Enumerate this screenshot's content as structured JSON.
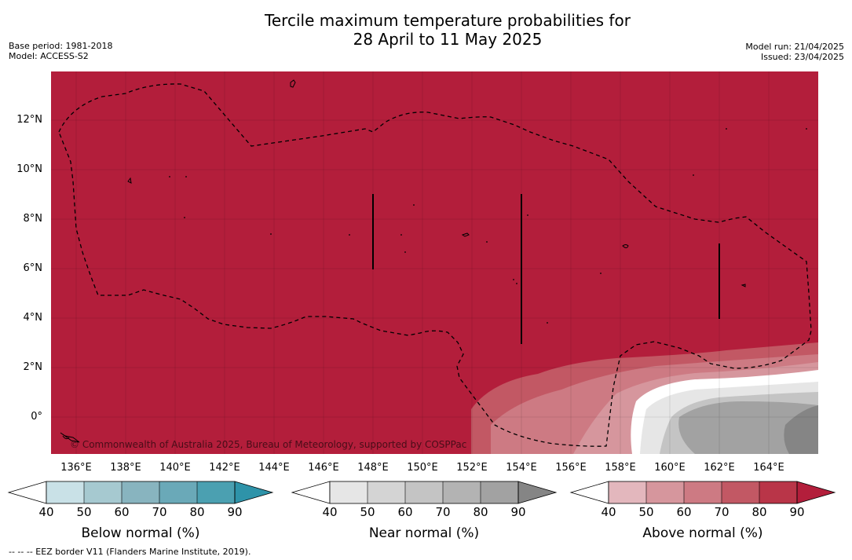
{
  "title": {
    "line1": "Tercile maximum temperature probabilities for",
    "line2": "28 April to 11 May 2025"
  },
  "meta_left": {
    "base_period": "Base period: 1981-2018",
    "model": "Model: ACCESS-S2"
  },
  "meta_right": {
    "model_run": "Model run: 21/04/2025",
    "issued": "Issued: 23/04/2025"
  },
  "map": {
    "background_color": "#b31e3b",
    "copyright": "© Commonwealth of Australia 2025, Bureau of Meteorology, supported by COSPPac",
    "lat_labels": [
      "12°N",
      "10°N",
      "8°N",
      "6°N",
      "4°N",
      "2°N",
      "0°"
    ],
    "lon_labels": [
      "136°E",
      "138°E",
      "140°E",
      "142°E",
      "144°E",
      "146°E",
      "148°E",
      "150°E",
      "152°E",
      "154°E",
      "156°E",
      "158°E",
      "160°E",
      "162°E",
      "164°E"
    ]
  },
  "colorbars": [
    {
      "title": "Below normal (%)",
      "ticks": [
        "40",
        "50",
        "60",
        "70",
        "80",
        "90"
      ],
      "colors": [
        "#c9e1e7",
        "#a6c9d0",
        "#88b4bf",
        "#6aa9b8",
        "#4ba0b1",
        "#2e93a9"
      ]
    },
    {
      "title": "Near normal (%)",
      "ticks": [
        "40",
        "50",
        "60",
        "70",
        "80",
        "90"
      ],
      "colors": [
        "#e6e6e6",
        "#d4d4d4",
        "#c4c4c4",
        "#b3b3b3",
        "#a2a2a2",
        "#858585"
      ]
    },
    {
      "title": "Above normal (%)",
      "ticks": [
        "40",
        "50",
        "60",
        "70",
        "80",
        "90"
      ],
      "colors": [
        "#e3b7bd",
        "#d6969d",
        "#cd7a83",
        "#c25864",
        "#b93548",
        "#b31e3b"
      ]
    }
  ],
  "footer": {
    "eez": "--  --  -- EEZ border V11 (Flanders Marine Institute, 2019)."
  }
}
